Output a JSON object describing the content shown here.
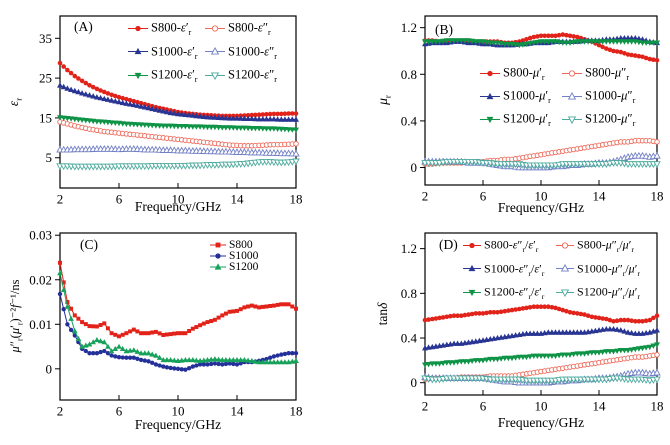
{
  "figure": {
    "background": "#ffffff",
    "axis_color": "#000000"
  },
  "colors": {
    "red": "#e2231a",
    "red_open": "#ed6a5a",
    "navy": "#283593",
    "slate_open": "#7381c6",
    "green": "#0f9447",
    "teal_open": "#4dab9e",
    "c_blue": "#24309a",
    "c_green": "#17a15a"
  },
  "chart_data": [
    {
      "id": "A",
      "type": "line",
      "panel_label": "(A)",
      "xlabel": "Frequency/GHz",
      "ylabel": "εᵣ",
      "xlim": [
        2,
        18
      ],
      "ylim": [
        -2.6,
        40.6
      ],
      "x_ticks": [
        2,
        6,
        10,
        14,
        18
      ],
      "y_ticks": [
        5,
        15,
        25,
        35
      ],
      "x_start": 2,
      "x_step": 0.5,
      "grid": false,
      "legend_position": "top-center",
      "series": [
        {
          "name": "S800-ε′ᵣ",
          "marker": "circle",
          "filled": true,
          "color": "#e2231a",
          "values": [
            28.8,
            27.0,
            25.5,
            24.3,
            23.2,
            22.3,
            21.5,
            20.8,
            20.2,
            19.7,
            19.2,
            18.7,
            18.2,
            17.7,
            17.3,
            16.9,
            16.5,
            16.2,
            16.0,
            15.8,
            15.7,
            15.6,
            15.5,
            15.5,
            15.5,
            15.6,
            15.7,
            15.8,
            15.9,
            16.0,
            16.0,
            16.1,
            16.1
          ]
        },
        {
          "name": "S800-ε″ᵣ",
          "marker": "circle",
          "filled": false,
          "color": "#ed6a5a",
          "values": [
            14.0,
            13.5,
            13.0,
            12.6,
            12.2,
            11.9,
            11.6,
            11.4,
            11.2,
            11.0,
            10.8,
            10.6,
            10.4,
            10.2,
            10.0,
            9.8,
            9.6,
            9.4,
            9.2,
            9.0,
            8.8,
            8.6,
            8.4,
            8.2,
            8.1,
            8.0,
            8.0,
            8.1,
            8.2,
            8.3,
            8.3,
            8.4,
            8.5
          ]
        },
        {
          "name": "S1000-ε′ᵣ",
          "marker": "triangle-up",
          "filled": true,
          "color": "#283593",
          "values": [
            23.2,
            22.4,
            21.8,
            21.2,
            20.7,
            20.2,
            19.8,
            19.4,
            19.0,
            18.6,
            18.3,
            17.9,
            17.5,
            17.1,
            16.7,
            16.3,
            16.0,
            15.8,
            15.6,
            15.4,
            15.2,
            15.1,
            15.0,
            14.9,
            14.9,
            14.8,
            14.8,
            14.7,
            14.7,
            14.7,
            14.6,
            14.6,
            14.6
          ]
        },
        {
          "name": "S1000-ε″ᵣ",
          "marker": "triangle-up",
          "filled": false,
          "color": "#7381c6",
          "values": [
            7.0,
            7.0,
            7.1,
            7.1,
            7.1,
            7.2,
            7.2,
            7.2,
            7.1,
            7.2,
            7.2,
            7.1,
            7.0,
            7.0,
            6.9,
            6.9,
            6.8,
            6.8,
            6.7,
            6.7,
            6.6,
            6.6,
            6.5,
            6.5,
            6.4,
            6.4,
            6.3,
            6.3,
            6.2,
            6.2,
            6.1,
            6.1,
            6.0
          ]
        },
        {
          "name": "S1200-ε′ᵣ",
          "marker": "triangle-down",
          "filled": true,
          "color": "#0f9447",
          "values": [
            15.1,
            14.9,
            14.7,
            14.5,
            14.3,
            14.1,
            14.0,
            13.8,
            13.7,
            13.5,
            13.4,
            13.3,
            13.2,
            13.1,
            13.0,
            13.0,
            12.9,
            12.9,
            12.8,
            12.8,
            12.7,
            12.7,
            12.6,
            12.6,
            12.5,
            12.5,
            12.4,
            12.4,
            12.3,
            12.3,
            12.2,
            12.1,
            12.0
          ]
        },
        {
          "name": "S1200-ε″ᵣ",
          "marker": "triangle-down",
          "filled": false,
          "color": "#4dab9e",
          "values": [
            2.9,
            2.9,
            2.8,
            2.8,
            2.8,
            2.8,
            2.8,
            2.8,
            2.9,
            2.9,
            2.9,
            2.9,
            2.9,
            3.0,
            3.0,
            3.0,
            3.0,
            3.0,
            3.1,
            3.1,
            3.2,
            3.2,
            3.3,
            3.3,
            3.4,
            3.5,
            3.7,
            3.9,
            4.0,
            3.9,
            3.8,
            3.9,
            4.1
          ]
        }
      ]
    },
    {
      "id": "B",
      "type": "line",
      "panel_label": "(B)",
      "xlabel": "Frequency/GHz",
      "ylabel": "μᵣ",
      "xlim": [
        2,
        18
      ],
      "ylim": [
        -0.15,
        1.3
      ],
      "x_ticks": [
        2,
        6,
        10,
        14,
        18
      ],
      "y_ticks": [
        0,
        0.4,
        0.8,
        1.2
      ],
      "x_start": 2,
      "x_step": 0.5,
      "grid": false,
      "legend_position": "middle-center",
      "series": [
        {
          "name": "S800-μ′ᵣ",
          "marker": "circle",
          "filled": true,
          "color": "#e2231a",
          "values": [
            1.09,
            1.09,
            1.08,
            1.09,
            1.09,
            1.09,
            1.09,
            1.08,
            1.08,
            1.08,
            1.08,
            1.07,
            1.07,
            1.08,
            1.1,
            1.12,
            1.13,
            1.13,
            1.13,
            1.14,
            1.13,
            1.12,
            1.1,
            1.08,
            1.05,
            1.02,
            1.0,
            0.99,
            0.97,
            0.96,
            0.95,
            0.93,
            0.92
          ]
        },
        {
          "name": "S800-μ″ᵣ",
          "marker": "circle",
          "filled": false,
          "color": "#ed6a5a",
          "values": [
            0.03,
            0.03,
            0.04,
            0.04,
            0.04,
            0.04,
            0.05,
            0.05,
            0.05,
            0.06,
            0.06,
            0.07,
            0.07,
            0.08,
            0.09,
            0.1,
            0.11,
            0.12,
            0.13,
            0.14,
            0.15,
            0.16,
            0.17,
            0.18,
            0.19,
            0.2,
            0.21,
            0.22,
            0.22,
            0.23,
            0.23,
            0.23,
            0.22
          ]
        },
        {
          "name": "S1000-μ′ᵣ",
          "marker": "triangle-up",
          "filled": true,
          "color": "#283593",
          "values": [
            1.06,
            1.07,
            1.07,
            1.07,
            1.08,
            1.08,
            1.07,
            1.07,
            1.06,
            1.06,
            1.05,
            1.05,
            1.05,
            1.06,
            1.06,
            1.07,
            1.07,
            1.07,
            1.08,
            1.08,
            1.08,
            1.08,
            1.09,
            1.09,
            1.09,
            1.1,
            1.1,
            1.11,
            1.11,
            1.11,
            1.1,
            1.08,
            1.07
          ]
        },
        {
          "name": "S1000-μ″ᵣ",
          "marker": "triangle-up",
          "filled": false,
          "color": "#7381c6",
          "values": [
            0.05,
            0.05,
            0.05,
            0.05,
            0.05,
            0.05,
            0.04,
            0.04,
            0.04,
            0.03,
            0.02,
            0.01,
            0.01,
            0.0,
            0.0,
            0.0,
            0.0,
            0.0,
            0.01,
            0.01,
            0.02,
            0.02,
            0.03,
            0.03,
            0.04,
            0.04,
            0.05,
            0.07,
            0.09,
            0.1,
            0.1,
            0.09,
            0.1
          ]
        },
        {
          "name": "S1200-μ′ᵣ",
          "marker": "triangle-down",
          "filled": true,
          "color": "#0f9447",
          "values": [
            1.08,
            1.08,
            1.08,
            1.09,
            1.09,
            1.09,
            1.09,
            1.08,
            1.08,
            1.07,
            1.07,
            1.06,
            1.06,
            1.05,
            1.06,
            1.07,
            1.08,
            1.08,
            1.08,
            1.07,
            1.07,
            1.08,
            1.08,
            1.08,
            1.08,
            1.08,
            1.08,
            1.08,
            1.08,
            1.08,
            1.07,
            1.07,
            1.07
          ]
        },
        {
          "name": "S1200-μ″ᵣ",
          "marker": "triangle-down",
          "filled": false,
          "color": "#4dab9e",
          "values": [
            0.04,
            0.04,
            0.04,
            0.05,
            0.05,
            0.05,
            0.05,
            0.05,
            0.04,
            0.04,
            0.03,
            0.03,
            0.03,
            0.03,
            0.02,
            0.02,
            0.02,
            0.02,
            0.02,
            0.03,
            0.03,
            0.03,
            0.03,
            0.03,
            0.03,
            0.03,
            0.04,
            0.04,
            0.03,
            0.03,
            0.03,
            0.03,
            0.03
          ]
        }
      ]
    },
    {
      "id": "C",
      "type": "line",
      "panel_label": "(C)",
      "xlabel": "Frequency/GHz",
      "ylabel": "μ″ᵣ(μ′ᵣ)⁻²f⁻¹/ns",
      "xlim": [
        2,
        18
      ],
      "ylim": [
        -0.007,
        0.0305
      ],
      "x_ticks": [
        2,
        6,
        10,
        14,
        18
      ],
      "y_ticks": [
        0,
        0.01,
        0.02,
        0.03
      ],
      "x_start": 2,
      "x_step": 0.5,
      "grid": false,
      "legend_position": "top-right",
      "series": [
        {
          "name": "S800",
          "marker": "square",
          "filled": true,
          "color": "#e2231a",
          "values": [
            0.0238,
            0.015,
            0.012,
            0.0105,
            0.0096,
            0.0095,
            0.0102,
            0.008,
            0.0073,
            0.008,
            0.0088,
            0.008,
            0.008,
            0.0083,
            0.0076,
            0.0078,
            0.008,
            0.008,
            0.009,
            0.0098,
            0.0105,
            0.011,
            0.012,
            0.0128,
            0.013,
            0.0138,
            0.0142,
            0.0138,
            0.014,
            0.0142,
            0.0145,
            0.0145,
            0.0135
          ]
        },
        {
          "name": "S1000",
          "marker": "circle",
          "filled": true,
          "color": "#24309a",
          "values": [
            0.0168,
            0.01,
            0.0075,
            0.0045,
            0.0035,
            0.0035,
            0.004,
            0.003,
            0.0026,
            0.0025,
            0.0025,
            0.002,
            0.0017,
            0.001,
            0.0005,
            0.0002,
            0.0,
            -0.0002,
            0.0005,
            0.001,
            0.001,
            0.0012,
            0.001,
            0.0012,
            0.001,
            0.0015,
            0.0015,
            0.0018,
            0.0022,
            0.0028,
            0.0032,
            0.0035,
            0.0035
          ]
        },
        {
          "name": "S1200",
          "marker": "triangle-up",
          "filled": true,
          "color": "#17a15a",
          "values": [
            0.0215,
            0.014,
            0.0085,
            0.005,
            0.0055,
            0.0065,
            0.006,
            0.004,
            0.005,
            0.004,
            0.0042,
            0.0035,
            0.0035,
            0.003,
            0.002,
            0.002,
            0.0018,
            0.002,
            0.002,
            0.0018,
            0.002,
            0.0022,
            0.002,
            0.002,
            0.002,
            0.002,
            0.0018,
            0.0015,
            0.0015,
            0.0015,
            0.0015,
            0.0015,
            0.0018
          ]
        }
      ]
    },
    {
      "id": "D",
      "type": "line",
      "panel_label": "(D)",
      "xlabel": "Frequency/GHz",
      "ylabel": "tanδ",
      "xlim": [
        2,
        18
      ],
      "ylim": [
        -0.11,
        1.34
      ],
      "x_ticks": [
        2,
        6,
        10,
        14,
        18
      ],
      "y_ticks": [
        0,
        0.4,
        0.8,
        1.2
      ],
      "x_start": 2,
      "x_step": 0.5,
      "grid": false,
      "legend_position": "top-center",
      "series": [
        {
          "name": "S800-ε″ᵣ/ε′ᵣ",
          "marker": "circle",
          "filled": true,
          "color": "#e2231a",
          "values": [
            0.56,
            0.57,
            0.58,
            0.59,
            0.6,
            0.6,
            0.61,
            0.62,
            0.62,
            0.63,
            0.63,
            0.64,
            0.65,
            0.66,
            0.67,
            0.68,
            0.68,
            0.68,
            0.67,
            0.65,
            0.63,
            0.62,
            0.61,
            0.59,
            0.58,
            0.57,
            0.55,
            0.56,
            0.56,
            0.55,
            0.55,
            0.56,
            0.6
          ]
        },
        {
          "name": "S800-μ″ᵣ/μ′ᵣ",
          "marker": "circle",
          "filled": false,
          "color": "#ed6a5a",
          "values": [
            0.03,
            0.04,
            0.04,
            0.04,
            0.04,
            0.05,
            0.05,
            0.05,
            0.05,
            0.06,
            0.06,
            0.06,
            0.06,
            0.07,
            0.08,
            0.09,
            0.1,
            0.11,
            0.12,
            0.13,
            0.14,
            0.15,
            0.16,
            0.17,
            0.18,
            0.19,
            0.2,
            0.21,
            0.22,
            0.23,
            0.23,
            0.24,
            0.25
          ]
        },
        {
          "name": "S1000-ε″ᵣ/ε′ᵣ",
          "marker": "triangle-up",
          "filled": true,
          "color": "#283593",
          "values": [
            0.31,
            0.32,
            0.33,
            0.34,
            0.35,
            0.35,
            0.36,
            0.37,
            0.38,
            0.39,
            0.4,
            0.41,
            0.42,
            0.43,
            0.44,
            0.44,
            0.44,
            0.45,
            0.45,
            0.45,
            0.45,
            0.45,
            0.45,
            0.46,
            0.47,
            0.48,
            0.48,
            0.47,
            0.45,
            0.44,
            0.44,
            0.45,
            0.47
          ]
        },
        {
          "name": "S1000-μ″ᵣ/μ′ᵣ",
          "marker": "triangle-up",
          "filled": false,
          "color": "#7381c6",
          "values": [
            0.05,
            0.04,
            0.04,
            0.04,
            0.04,
            0.04,
            0.04,
            0.04,
            0.04,
            0.03,
            0.02,
            0.01,
            0.01,
            0.0,
            0.0,
            0.0,
            0.0,
            0.0,
            0.01,
            0.01,
            0.02,
            0.02,
            0.03,
            0.03,
            0.04,
            0.04,
            0.05,
            0.06,
            0.08,
            0.09,
            0.09,
            0.08,
            0.09
          ]
        },
        {
          "name": "S1200-ε″ᵣ/ε′ᵣ",
          "marker": "triangle-down",
          "filled": true,
          "color": "#0f9447",
          "values": [
            0.16,
            0.17,
            0.17,
            0.18,
            0.18,
            0.19,
            0.19,
            0.2,
            0.2,
            0.21,
            0.21,
            0.22,
            0.22,
            0.23,
            0.23,
            0.24,
            0.24,
            0.24,
            0.24,
            0.25,
            0.25,
            0.26,
            0.26,
            0.27,
            0.27,
            0.28,
            0.28,
            0.29,
            0.29,
            0.3,
            0.31,
            0.32,
            0.34
          ]
        },
        {
          "name": "S1200-μ″ᵣ/μ′ᵣ",
          "marker": "triangle-down",
          "filled": false,
          "color": "#4dab9e",
          "values": [
            0.04,
            0.03,
            0.03,
            0.04,
            0.04,
            0.04,
            0.04,
            0.04,
            0.04,
            0.03,
            0.03,
            0.03,
            0.03,
            0.03,
            0.02,
            0.02,
            0.02,
            0.02,
            0.02,
            0.03,
            0.03,
            0.03,
            0.03,
            0.03,
            0.03,
            0.03,
            0.04,
            0.04,
            0.03,
            0.03,
            0.03,
            0.02,
            0.03
          ]
        }
      ]
    }
  ]
}
